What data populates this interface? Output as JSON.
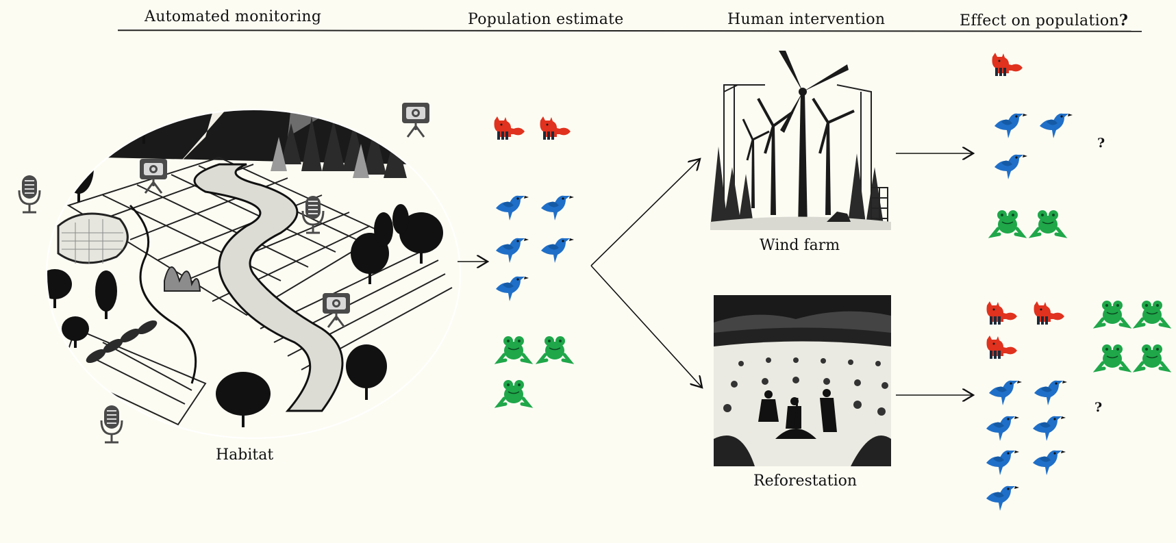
{
  "headers": {
    "monitoring": "Automated monitoring",
    "population": "Population estimate",
    "intervention": "Human intervention",
    "effect": "Effect on population",
    "effect_mark": "?"
  },
  "captions": {
    "habitat": "Habitat",
    "wind_farm": "Wind farm",
    "reforestation": "Reforestation"
  },
  "unknown_marks": {
    "wind_farm": "?",
    "reforestation": "?"
  },
  "population_estimate": {
    "fox": 2,
    "bird": 5,
    "frog": 3
  },
  "effect_wind_farm": {
    "fox": 1,
    "bird": 3,
    "frog": 2
  },
  "effect_reforestation": {
    "fox": 3,
    "bird": 7,
    "frog": 4
  },
  "colors": {
    "fox": "#e0321e",
    "bird": "#1f6fc8",
    "frog": "#1fa74a",
    "ink": "#1a1a1a",
    "background": "#fdfcf3"
  },
  "icons": [
    "camera-trap-icon",
    "microphone-icon",
    "fox-icon",
    "bird-icon",
    "frog-icon"
  ]
}
